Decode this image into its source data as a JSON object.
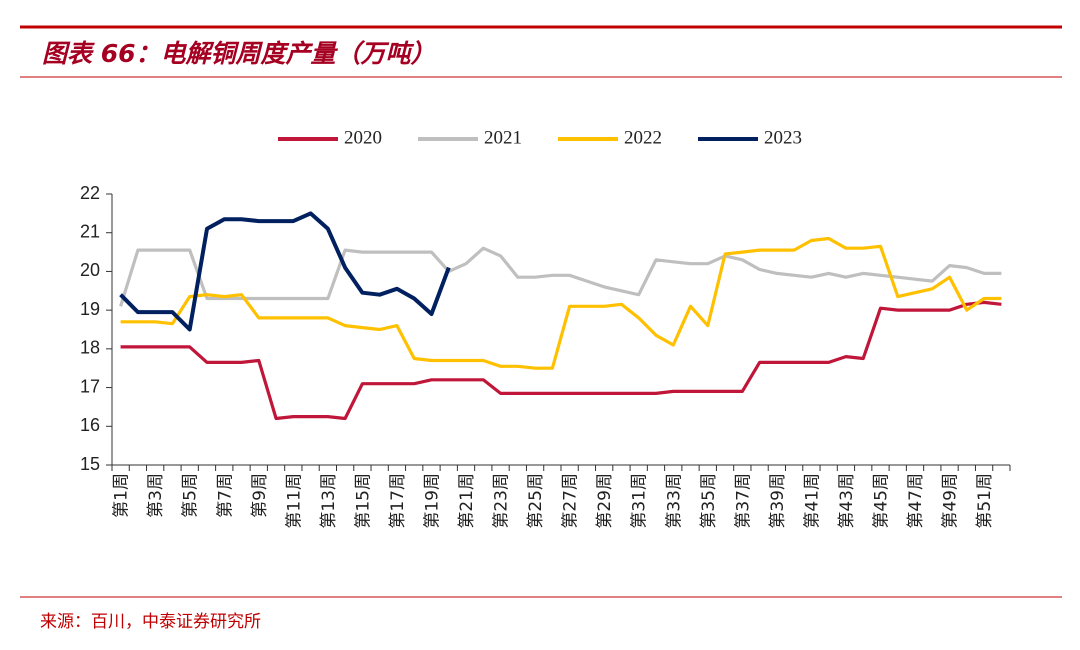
{
  "header": {
    "title": "图表 66：电解铜周度产量（万吨）"
  },
  "chart_data": {
    "type": "line",
    "categories": [
      "第1周",
      null,
      "第3周",
      null,
      "第5周",
      null,
      "第7周",
      null,
      "第9周",
      null,
      "第11周",
      null,
      "第13周",
      null,
      "第15周",
      null,
      "第17周",
      null,
      "第19周",
      null,
      "第21周",
      null,
      "第23周",
      null,
      "第25周",
      null,
      "第27周",
      null,
      "第29周",
      null,
      "第31周",
      null,
      "第33周",
      null,
      "第35周",
      null,
      "第37周",
      null,
      "第39周",
      null,
      "第41周",
      null,
      "第43周",
      null,
      "第45周",
      null,
      "第47周",
      null,
      "第49周",
      null,
      "第51周",
      null
    ],
    "series": [
      {
        "name": "2020",
        "color": "#c0163a",
        "values": [
          18.05,
          18.05,
          18.05,
          18.05,
          18.05,
          17.65,
          17.65,
          17.65,
          17.7,
          16.2,
          16.25,
          16.25,
          16.25,
          16.2,
          17.1,
          17.1,
          17.1,
          17.1,
          17.2,
          17.2,
          17.2,
          17.2,
          16.85,
          16.85,
          16.85,
          16.85,
          16.85,
          16.85,
          16.85,
          16.85,
          16.85,
          16.85,
          16.9,
          16.9,
          16.9,
          16.9,
          16.9,
          17.65,
          17.65,
          17.65,
          17.65,
          17.65,
          17.8,
          17.75,
          19.05,
          19.0,
          19.0,
          19.0,
          19.0,
          19.15,
          19.2,
          19.15
        ]
      },
      {
        "name": "2021",
        "color": "#bfbfbf",
        "values": [
          19.1,
          20.55,
          20.55,
          20.55,
          20.55,
          19.3,
          19.3,
          19.3,
          19.3,
          19.3,
          19.3,
          19.3,
          19.3,
          20.55,
          20.5,
          20.5,
          20.5,
          20.5,
          20.5,
          20.0,
          20.2,
          20.6,
          20.4,
          19.85,
          19.85,
          19.9,
          19.9,
          19.75,
          19.6,
          19.5,
          19.4,
          20.3,
          20.25,
          20.2,
          20.2,
          20.4,
          20.3,
          20.05,
          19.95,
          19.9,
          19.85,
          19.95,
          19.85,
          19.95,
          19.9,
          19.85,
          19.8,
          19.75,
          20.15,
          20.1,
          19.95,
          19.95
        ]
      },
      {
        "name": "2022",
        "color": "#ffc000",
        "values": [
          18.7,
          18.7,
          18.7,
          18.65,
          19.35,
          19.4,
          19.35,
          19.4,
          18.8,
          18.8,
          18.8,
          18.8,
          18.8,
          18.6,
          18.55,
          18.5,
          18.6,
          17.75,
          17.7,
          17.7,
          17.7,
          17.7,
          17.55,
          17.55,
          17.5,
          17.5,
          19.1,
          19.1,
          19.1,
          19.15,
          18.8,
          18.35,
          18.1,
          19.1,
          18.6,
          20.45,
          20.5,
          20.55,
          20.55,
          20.55,
          20.8,
          20.85,
          20.6,
          20.6,
          20.65,
          19.35,
          19.45,
          19.55,
          19.85,
          19.0,
          19.3,
          19.3
        ]
      },
      {
        "name": "2023",
        "color": "#002060",
        "values": [
          19.4,
          18.95,
          18.95,
          18.95,
          18.5,
          21.1,
          21.35,
          21.35,
          21.3,
          21.3,
          21.3,
          21.5,
          21.1,
          20.1,
          19.45,
          19.4,
          19.55,
          19.3,
          18.9,
          20.1,
          null,
          null,
          null,
          null,
          null,
          null,
          null,
          null,
          null,
          null,
          null,
          null,
          null,
          null,
          null,
          null,
          null,
          null,
          null,
          null,
          null,
          null,
          null,
          null,
          null,
          null,
          null,
          null,
          null,
          null,
          null,
          null
        ]
      }
    ],
    "ylim": [
      15,
      22
    ],
    "yticks": [
      15,
      16,
      17,
      18,
      19,
      20,
      21,
      22
    ],
    "legend": "top"
  },
  "footer": {
    "source": "来源：百川，中泰证券研究所"
  }
}
